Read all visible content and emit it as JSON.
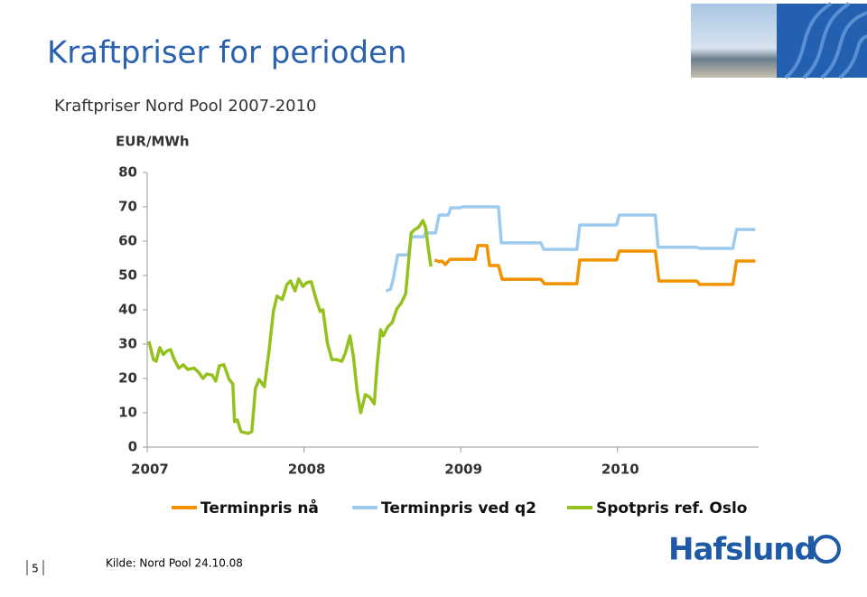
{
  "slide": {
    "title": "Kraftpriser for perioden",
    "page_number": "5",
    "source": "Kilde: Nord Pool 24.10.08",
    "logo": "Hafslund"
  },
  "chart_data": {
    "type": "line",
    "title": "Kraftpriser Nord Pool 2007-2010",
    "y_label": "EUR/MWh",
    "xlim": [
      2007,
      2010.9
    ],
    "xticks": [
      2007,
      2008,
      2009,
      2010
    ],
    "ylim": [
      0,
      80
    ],
    "yticks": [
      0,
      10,
      20,
      30,
      40,
      50,
      60,
      70,
      80
    ],
    "legend": "bottom",
    "series": [
      {
        "name": "Terminpris nå",
        "color": "#f39200",
        "x": [
          2008.833,
          2008.862,
          2008.879,
          2008.902,
          2008.931,
          2009.092,
          2009.109,
          2009.167,
          2009.184,
          2009.241,
          2009.264,
          2009.511,
          2009.534,
          2009.741,
          2009.759,
          2009.994,
          2010.011,
          2010.241,
          2010.264,
          2010.506,
          2010.523,
          2010.736,
          2010.759,
          2010.879
        ],
        "values": [
          54.5,
          54,
          54.2,
          53.2,
          54.7,
          54.7,
          58.7,
          58.7,
          52.9,
          52.9,
          48.9,
          48.9,
          47.6,
          47.6,
          54.5,
          54.5,
          57.1,
          57.1,
          48.4,
          48.4,
          47.4,
          47.4,
          54.2,
          54.2
        ]
      },
      {
        "name": "Terminpris ved q2",
        "color": "#9dcbef",
        "x": [
          2008.523,
          2008.552,
          2008.569,
          2008.598,
          2008.667,
          2008.684,
          2008.764,
          2008.776,
          2008.839,
          2008.862,
          2008.92,
          2008.937,
          2008.994,
          2009.011,
          2009.241,
          2009.259,
          2009.511,
          2009.529,
          2009.741,
          2009.759,
          2009.994,
          2010.011,
          2010.241,
          2010.259,
          2010.506,
          2010.523,
          2010.736,
          2010.759,
          2010.879
        ],
        "values": [
          45.5,
          46,
          49,
          56,
          56,
          61.3,
          61.3,
          62.4,
          62.4,
          67.6,
          67.6,
          69.7,
          69.7,
          70,
          70,
          59.5,
          59.5,
          57.6,
          57.6,
          64.7,
          64.7,
          67.6,
          67.6,
          58.2,
          58.2,
          57.9,
          57.9,
          63.4,
          63.4
        ]
      },
      {
        "name": "Spotpris ref. Oslo",
        "color": "#95c11f",
        "x": [
          2007.011,
          2007.04,
          2007.057,
          2007.08,
          2007.103,
          2007.126,
          2007.149,
          2007.172,
          2007.201,
          2007.23,
          2007.259,
          2007.299,
          2007.328,
          2007.356,
          2007.379,
          2007.414,
          2007.437,
          2007.46,
          2007.489,
          2007.523,
          2007.546,
          2007.557,
          2007.575,
          2007.598,
          2007.644,
          2007.667,
          2007.69,
          2007.713,
          2007.747,
          2007.776,
          2007.805,
          2007.828,
          2007.862,
          2007.891,
          2007.914,
          2007.943,
          2007.966,
          2007.994,
          2008.017,
          2008.046,
          2008.075,
          2008.103,
          2008.121,
          2008.149,
          2008.178,
          2008.207,
          2008.241,
          2008.264,
          2008.293,
          2008.316,
          2008.339,
          2008.362,
          2008.391,
          2008.42,
          2008.448,
          2008.466,
          2008.489,
          2008.506,
          2008.534,
          2008.563,
          2008.592,
          2008.621,
          2008.649,
          2008.667,
          2008.684,
          2008.707,
          2008.73,
          2008.759,
          2008.776,
          2008.793,
          2008.81
        ],
        "values": [
          30.8,
          25.5,
          25,
          29,
          27,
          28,
          28.4,
          25.5,
          23,
          24,
          22.6,
          23,
          21.8,
          20,
          21.3,
          21,
          19.2,
          23.7,
          24,
          19.7,
          18.4,
          7.4,
          7.9,
          4.5,
          4,
          4.5,
          17,
          19.7,
          17.6,
          27.6,
          39.5,
          44,
          43,
          47.4,
          48.4,
          45.5,
          49,
          46.8,
          47.9,
          48.2,
          43.4,
          39.5,
          40,
          30.3,
          25.5,
          25.5,
          25,
          27.4,
          32.4,
          26.3,
          16.3,
          10,
          15.3,
          14.5,
          12.6,
          23.7,
          34.2,
          32.4,
          35,
          36.3,
          40.3,
          42,
          44.7,
          54,
          62.4,
          63.4,
          64,
          66,
          64,
          58,
          52.6
        ]
      }
    ]
  }
}
